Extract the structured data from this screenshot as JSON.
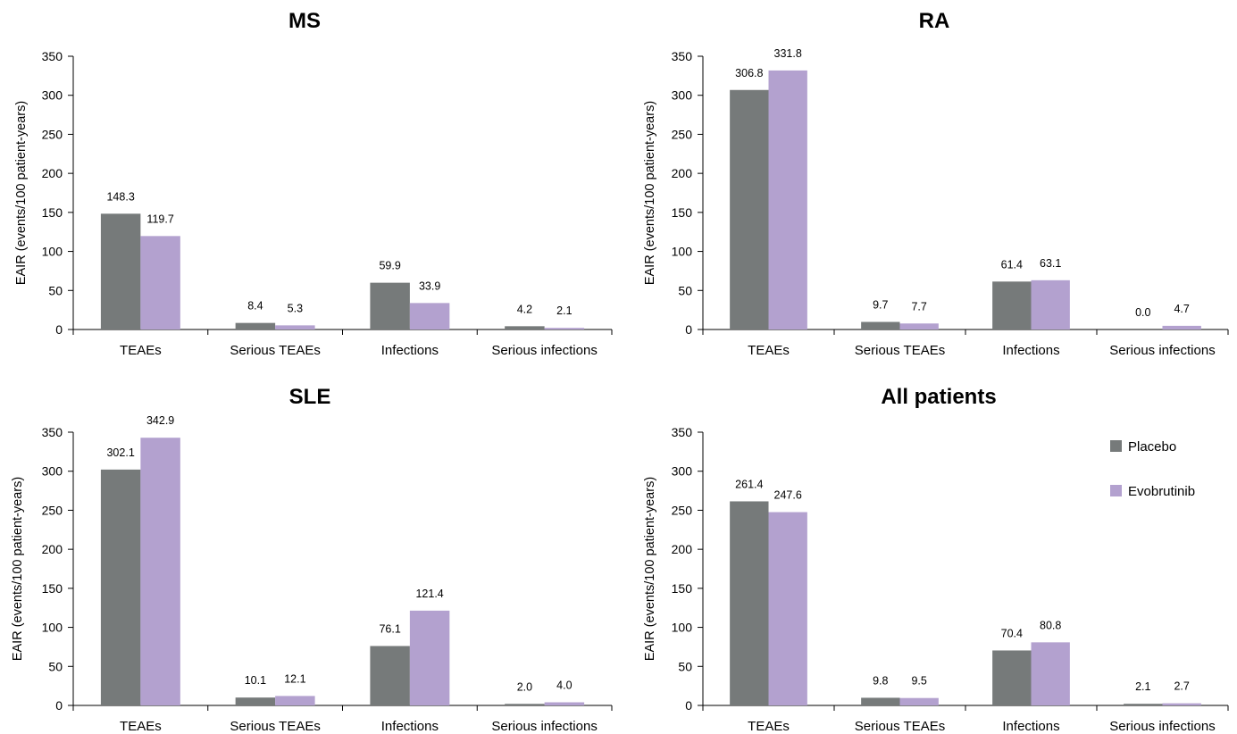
{
  "legend": [
    {
      "name": "Placebo",
      "color": "#767a7a"
    },
    {
      "name": "Evobrutinib",
      "color": "#b3a1cf"
    }
  ],
  "chart_data": [
    {
      "type": "bar",
      "title": "MS",
      "ylabel": "EAIR (events/100 patient-years)",
      "xlabel": "",
      "ylim": [
        0,
        350
      ],
      "yticks": [
        "0",
        "50",
        "100",
        "150",
        "200",
        "250",
        "300",
        "350"
      ],
      "categories": [
        "TEAEs",
        "Serious TEAEs",
        "Infections",
        "Serious infections"
      ],
      "series": [
        {
          "name": "Placebo",
          "values": [
            148.3,
            8.4,
            59.9,
            4.2
          ],
          "labels": [
            "148.3",
            "8.4",
            "59.9",
            "4.2"
          ]
        },
        {
          "name": "Evobrutinib",
          "values": [
            119.7,
            5.3,
            33.9,
            2.1
          ],
          "labels": [
            "119.7",
            "5.3",
            "33.9",
            "2.1"
          ]
        }
      ]
    },
    {
      "type": "bar",
      "title": "RA",
      "ylabel": "EAIR (events/100 patient-years)",
      "xlabel": "",
      "ylim": [
        0,
        350
      ],
      "yticks": [
        "0",
        "50",
        "100",
        "150",
        "200",
        "250",
        "300",
        "350"
      ],
      "categories": [
        "TEAEs",
        "Serious TEAEs",
        "Infections",
        "Serious infections"
      ],
      "series": [
        {
          "name": "Placebo",
          "values": [
            306.8,
            9.7,
            61.4,
            0.0
          ],
          "labels": [
            "306.8",
            "9.7",
            "61.4",
            "0.0"
          ]
        },
        {
          "name": "Evobrutinib",
          "values": [
            331.8,
            7.7,
            63.1,
            4.7
          ],
          "labels": [
            "331.8",
            "7.7",
            "63.1",
            "4.7"
          ]
        }
      ]
    },
    {
      "type": "bar",
      "title": "SLE",
      "ylabel": "EAIR (events/100 patient-years)",
      "xlabel": "",
      "ylim": [
        0,
        350
      ],
      "yticks": [
        "0",
        "50",
        "100",
        "150",
        "200",
        "250",
        "300",
        "350"
      ],
      "categories": [
        "TEAEs",
        "Serious TEAEs",
        "Infections",
        "Serious infections"
      ],
      "series": [
        {
          "name": "Placebo",
          "values": [
            302.1,
            10.1,
            76.1,
            2.0
          ],
          "labels": [
            "302.1",
            "10.1",
            "76.1",
            "2.0"
          ]
        },
        {
          "name": "Evobrutinib",
          "values": [
            342.9,
            12.1,
            121.4,
            4.0
          ],
          "labels": [
            "342.9",
            "12.1",
            "121.4",
            "4.0"
          ]
        }
      ]
    },
    {
      "type": "bar",
      "title": "All patients",
      "ylabel": "EAIR (events/100 patient-years)",
      "xlabel": "",
      "ylim": [
        0,
        350
      ],
      "yticks": [
        "0",
        "50",
        "100",
        "150",
        "200",
        "250",
        "300",
        "350"
      ],
      "categories": [
        "TEAEs",
        "Serious TEAEs",
        "Infections",
        "Serious infections"
      ],
      "series": [
        {
          "name": "Placebo",
          "values": [
            261.4,
            9.8,
            70.4,
            2.1
          ],
          "labels": [
            "261.4",
            "9.8",
            "70.4",
            "2.1"
          ]
        },
        {
          "name": "Evobrutinib",
          "values": [
            247.6,
            9.5,
            80.8,
            2.7
          ],
          "labels": [
            "247.6",
            "9.5",
            "80.8",
            "2.7"
          ]
        }
      ],
      "legend_position": "top-right"
    }
  ]
}
